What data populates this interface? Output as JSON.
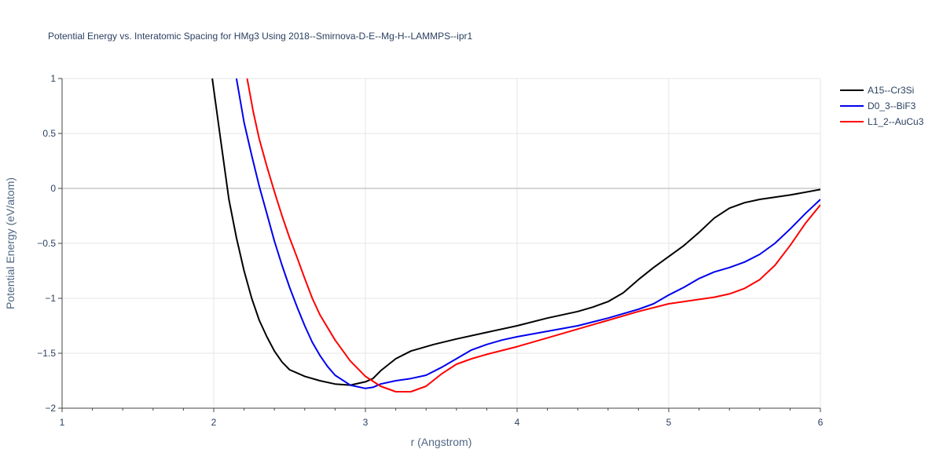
{
  "chart_data": {
    "type": "line",
    "title": "Potential Energy vs. Interatomic Spacing for HMg3 Using 2018--Smirnova-D-E--Mg-H--LAMMPS--ipr1",
    "xlabel": "r (Angstrom)",
    "ylabel": "Potential Energy (eV/atom)",
    "xlim": [
      1,
      6
    ],
    "ylim": [
      -2,
      1
    ],
    "xticks": [
      1,
      2,
      3,
      4,
      5,
      6
    ],
    "xtick_labels": [
      "1",
      "2",
      "3",
      "4",
      "5",
      "6"
    ],
    "yticks": [
      1,
      0.5,
      0,
      -0.5,
      -1,
      -1.5,
      -2
    ],
    "ytick_labels": [
      "1",
      "0.5",
      "0",
      "−0.5",
      "−1",
      "−1.5",
      "−2"
    ],
    "grid": true,
    "legend": "top-right",
    "series": [
      {
        "name": "A15--Cr3Si",
        "color": "#000000",
        "points": [
          [
            1.99,
            1.0
          ],
          [
            2.05,
            0.4
          ],
          [
            2.1,
            -0.1
          ],
          [
            2.15,
            -0.45
          ],
          [
            2.2,
            -0.75
          ],
          [
            2.25,
            -1.0
          ],
          [
            2.3,
            -1.2
          ],
          [
            2.35,
            -1.35
          ],
          [
            2.4,
            -1.48
          ],
          [
            2.45,
            -1.58
          ],
          [
            2.5,
            -1.65
          ],
          [
            2.6,
            -1.71
          ],
          [
            2.7,
            -1.75
          ],
          [
            2.8,
            -1.78
          ],
          [
            2.9,
            -1.79
          ],
          [
            3.0,
            -1.76
          ],
          [
            3.05,
            -1.73
          ],
          [
            3.1,
            -1.66
          ],
          [
            3.2,
            -1.55
          ],
          [
            3.3,
            -1.48
          ],
          [
            3.45,
            -1.42
          ],
          [
            3.6,
            -1.37
          ],
          [
            3.8,
            -1.31
          ],
          [
            4.0,
            -1.25
          ],
          [
            4.2,
            -1.18
          ],
          [
            4.4,
            -1.12
          ],
          [
            4.5,
            -1.08
          ],
          [
            4.6,
            -1.03
          ],
          [
            4.7,
            -0.95
          ],
          [
            4.8,
            -0.83
          ],
          [
            4.9,
            -0.72
          ],
          [
            5.0,
            -0.62
          ],
          [
            5.1,
            -0.52
          ],
          [
            5.2,
            -0.4
          ],
          [
            5.3,
            -0.27
          ],
          [
            5.4,
            -0.18
          ],
          [
            5.5,
            -0.13
          ],
          [
            5.6,
            -0.1
          ],
          [
            5.8,
            -0.06
          ],
          [
            6.0,
            -0.01
          ]
        ]
      },
      {
        "name": "D0_3--BiF3",
        "color": "#0000ee",
        "points": [
          [
            2.15,
            1.0
          ],
          [
            2.2,
            0.6
          ],
          [
            2.25,
            0.3
          ],
          [
            2.3,
            0.02
          ],
          [
            2.35,
            -0.23
          ],
          [
            2.4,
            -0.48
          ],
          [
            2.45,
            -0.7
          ],
          [
            2.5,
            -0.9
          ],
          [
            2.55,
            -1.08
          ],
          [
            2.6,
            -1.25
          ],
          [
            2.65,
            -1.4
          ],
          [
            2.7,
            -1.52
          ],
          [
            2.75,
            -1.62
          ],
          [
            2.8,
            -1.7
          ],
          [
            2.9,
            -1.79
          ],
          [
            3.0,
            -1.82
          ],
          [
            3.05,
            -1.81
          ],
          [
            3.1,
            -1.78
          ],
          [
            3.2,
            -1.75
          ],
          [
            3.3,
            -1.73
          ],
          [
            3.4,
            -1.7
          ],
          [
            3.5,
            -1.63
          ],
          [
            3.6,
            -1.55
          ],
          [
            3.7,
            -1.47
          ],
          [
            3.8,
            -1.42
          ],
          [
            3.9,
            -1.38
          ],
          [
            4.0,
            -1.35
          ],
          [
            4.2,
            -1.3
          ],
          [
            4.4,
            -1.25
          ],
          [
            4.6,
            -1.18
          ],
          [
            4.8,
            -1.1
          ],
          [
            4.9,
            -1.05
          ],
          [
            5.0,
            -0.97
          ],
          [
            5.1,
            -0.9
          ],
          [
            5.2,
            -0.82
          ],
          [
            5.3,
            -0.76
          ],
          [
            5.4,
            -0.72
          ],
          [
            5.5,
            -0.67
          ],
          [
            5.6,
            -0.6
          ],
          [
            5.7,
            -0.5
          ],
          [
            5.8,
            -0.37
          ],
          [
            5.9,
            -0.23
          ],
          [
            6.0,
            -0.1
          ]
        ]
      },
      {
        "name": "L1_2--AuCu3",
        "color": "#ff0000",
        "points": [
          [
            2.22,
            1.0
          ],
          [
            2.26,
            0.7
          ],
          [
            2.3,
            0.45
          ],
          [
            2.35,
            0.2
          ],
          [
            2.4,
            -0.03
          ],
          [
            2.45,
            -0.25
          ],
          [
            2.5,
            -0.45
          ],
          [
            2.55,
            -0.63
          ],
          [
            2.6,
            -0.82
          ],
          [
            2.65,
            -1.0
          ],
          [
            2.7,
            -1.15
          ],
          [
            2.8,
            -1.38
          ],
          [
            2.9,
            -1.57
          ],
          [
            3.0,
            -1.71
          ],
          [
            3.1,
            -1.8
          ],
          [
            3.2,
            -1.85
          ],
          [
            3.3,
            -1.85
          ],
          [
            3.4,
            -1.8
          ],
          [
            3.5,
            -1.69
          ],
          [
            3.6,
            -1.6
          ],
          [
            3.7,
            -1.55
          ],
          [
            3.8,
            -1.51
          ],
          [
            4.0,
            -1.44
          ],
          [
            4.2,
            -1.36
          ],
          [
            4.4,
            -1.28
          ],
          [
            4.6,
            -1.2
          ],
          [
            4.8,
            -1.12
          ],
          [
            5.0,
            -1.05
          ],
          [
            5.2,
            -1.01
          ],
          [
            5.3,
            -0.99
          ],
          [
            5.4,
            -0.96
          ],
          [
            5.5,
            -0.91
          ],
          [
            5.6,
            -0.83
          ],
          [
            5.7,
            -0.7
          ],
          [
            5.8,
            -0.52
          ],
          [
            5.9,
            -0.32
          ],
          [
            6.0,
            -0.15
          ]
        ]
      }
    ]
  }
}
